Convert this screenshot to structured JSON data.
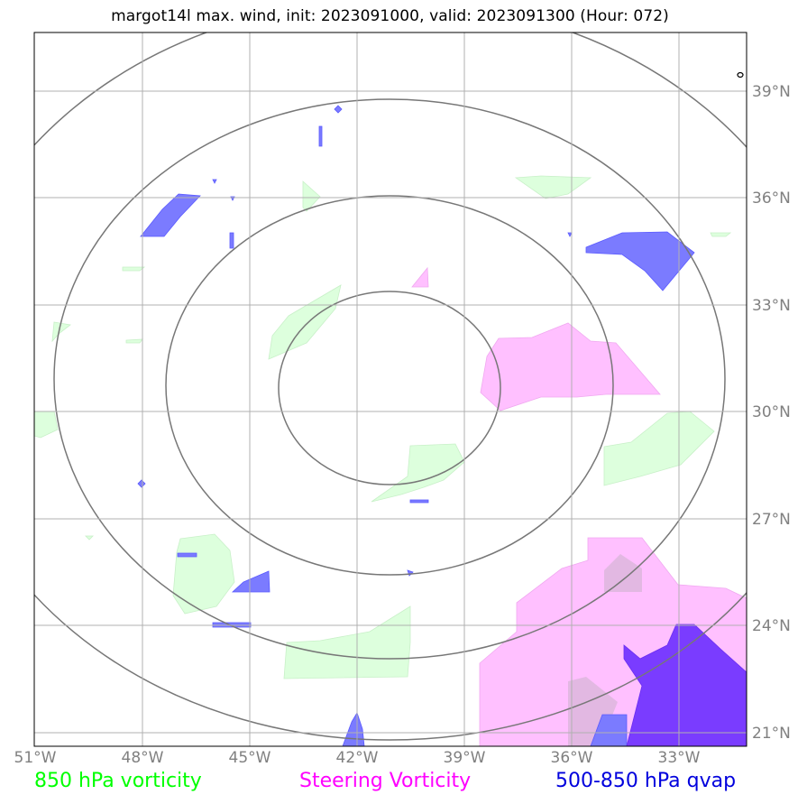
{
  "title": "margot14l max. wind, init: 2023091000, valid: 2023091300 (Hour: 072)",
  "axes": {
    "x_ticks": [
      "51°W",
      "48°W",
      "45°W",
      "42°W",
      "39°W",
      "36°W",
      "33°W"
    ],
    "y_ticks": [
      "39°N",
      "36°N",
      "33°N",
      "30°N",
      "27°N",
      "24°N",
      "21°N"
    ],
    "lon_range": [
      -51,
      -31
    ],
    "lat_range": [
      20.6,
      40.6
    ]
  },
  "legend": {
    "vort850": "850 hPa vorticity",
    "steering": "Steering Vorticity",
    "qvap": "500-850 hPa qvap"
  },
  "colors": {
    "vort850": "#ddffdd",
    "steering": "#ffc0ff",
    "qvap": "#7b7bff",
    "qvap_dark": "#7a3cff",
    "ring": "#777777",
    "grid": "#b0b0b0"
  }
}
